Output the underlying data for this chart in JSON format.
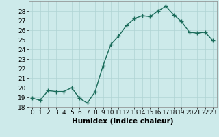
{
  "x": [
    0,
    1,
    2,
    3,
    4,
    5,
    6,
    7,
    8,
    9,
    10,
    11,
    12,
    13,
    14,
    15,
    16,
    17,
    18,
    19,
    20,
    21,
    22,
    23
  ],
  "y": [
    18.9,
    18.7,
    19.7,
    19.6,
    19.6,
    20.0,
    18.9,
    18.4,
    19.6,
    22.3,
    24.5,
    25.4,
    26.5,
    27.2,
    27.5,
    27.4,
    28.0,
    28.5,
    27.6,
    26.9,
    25.8,
    25.7,
    25.8,
    24.9
  ],
  "line_color": "#1a6b5a",
  "marker": "+",
  "marker_size": 4,
  "bg_color": "#cdeaea",
  "grid_color": "#b0d4d4",
  "xlabel": "Humidex (Indice chaleur)",
  "ylim": [
    18,
    29
  ],
  "xlim": [
    -0.5,
    23.5
  ],
  "yticks": [
    18,
    19,
    20,
    21,
    22,
    23,
    24,
    25,
    26,
    27,
    28
  ],
  "xticks": [
    0,
    1,
    2,
    3,
    4,
    5,
    6,
    7,
    8,
    9,
    10,
    11,
    12,
    13,
    14,
    15,
    16,
    17,
    18,
    19,
    20,
    21,
    22,
    23
  ],
  "xtick_labels": [
    "0",
    "1",
    "2",
    "3",
    "4",
    "5",
    "6",
    "7",
    "8",
    "9",
    "10",
    "11",
    "12",
    "13",
    "14",
    "15",
    "16",
    "17",
    "18",
    "19",
    "20",
    "21",
    "22",
    "23"
  ],
  "tick_fontsize": 6.5,
  "xlabel_fontsize": 7.5
}
